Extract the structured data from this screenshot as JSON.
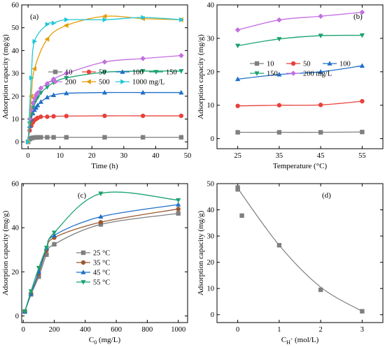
{
  "colors": {
    "grey": "#7f7f7f",
    "red": "#e8413b",
    "blue": "#1f6fc9",
    "green": "#1aa36f",
    "purple": "#c36fe0",
    "orange": "#e69a00",
    "cyan": "#20c7d6",
    "brown": "#9a5a32"
  },
  "chart_data": [
    {
      "id": "a",
      "type": "line",
      "panel_label": "(a)",
      "xlabel": "Time (h)",
      "ylabel": "Adsorption capacity (mg/g)",
      "xlim": [
        -2,
        50
      ],
      "ylim": [
        -3,
        60
      ],
      "xticks": [
        0,
        10,
        20,
        30,
        40,
        50
      ],
      "xtick_labels": [
        "0",
        "10",
        "20",
        "30",
        "40",
        "50"
      ],
      "yticks": [
        0,
        10,
        20,
        30,
        40,
        50,
        60
      ],
      "ytick_labels": [
        "0",
        "10",
        "20",
        "30",
        "40",
        "50",
        "60"
      ],
      "legend": {
        "placement": "top-right",
        "columns": 4
      },
      "series": [
        {
          "name": "10",
          "color": "grey",
          "marker": "square",
          "x": [
            0,
            0.5,
            1,
            1.5,
            2,
            2.5,
            3,
            4,
            6,
            8,
            12,
            24,
            36,
            48
          ],
          "y": [
            0,
            1.2,
            1.6,
            1.8,
            1.9,
            1.95,
            2.0,
            2.0,
            2.0,
            2.0,
            2.0,
            2.0,
            2.0,
            2.0
          ]
        },
        {
          "name": "50",
          "color": "red",
          "marker": "circle",
          "x": [
            0,
            0.5,
            1,
            1.5,
            2,
            2.5,
            3,
            4,
            6,
            8,
            12,
            24,
            36,
            48
          ],
          "y": [
            0,
            5,
            7,
            8.5,
            9.5,
            10,
            10.5,
            11,
            11,
            11.2,
            11.3,
            11.4,
            11.4,
            11.4
          ]
        },
        {
          "name": "100",
          "color": "blue",
          "marker": "triangle-up",
          "x": [
            0,
            0.5,
            1,
            1.5,
            2,
            2.5,
            3,
            4,
            6,
            8,
            12,
            24,
            36,
            48
          ],
          "y": [
            0,
            7,
            10,
            12.5,
            14,
            15,
            16,
            17.5,
            19.5,
            20.5,
            21.3,
            21.6,
            21.6,
            21.6
          ]
        },
        {
          "name": "150",
          "color": "green",
          "marker": "triangle-down",
          "x": [
            0,
            0.5,
            1,
            1.5,
            2,
            2.5,
            3,
            4,
            6,
            8,
            12,
            24,
            36,
            48
          ],
          "y": [
            0,
            8,
            12,
            15,
            17,
            18.5,
            19.5,
            21.5,
            24,
            26,
            28,
            30.5,
            31,
            31
          ]
        },
        {
          "name": "200",
          "color": "purple",
          "marker": "diamond",
          "x": [
            0,
            0.5,
            1,
            1.5,
            2,
            2.5,
            3,
            4,
            6,
            8,
            12,
            24,
            36,
            48
          ],
          "y": [
            0,
            10,
            14,
            17,
            19,
            20.5,
            21.5,
            23.5,
            25.5,
            27.5,
            30,
            35,
            36.5,
            37.8
          ]
        },
        {
          "name": "500",
          "color": "orange",
          "marker": "triangle-left",
          "x": [
            0,
            1,
            2,
            6,
            12,
            24,
            36,
            48
          ],
          "y": [
            0,
            20,
            32,
            45,
            51,
            55,
            54,
            53.5
          ]
        },
        {
          "name": "1000 mg/L",
          "color": "cyan",
          "marker": "triangle-right",
          "x": [
            0,
            1,
            2,
            6,
            8,
            12,
            24,
            36,
            48
          ],
          "y": [
            0,
            28,
            44,
            51.5,
            52,
            53.5,
            53.5,
            54.5,
            53.5
          ]
        }
      ]
    },
    {
      "id": "b",
      "type": "line",
      "panel_label": "(b)",
      "xlabel": "Temperature (°C)",
      "ylabel": "Adsorption capacity (mg/g)",
      "xlim": [
        20,
        60
      ],
      "ylim": [
        -3,
        40
      ],
      "xticks": [
        25,
        35,
        45,
        55
      ],
      "xtick_labels": [
        "25",
        "35",
        "45",
        "55"
      ],
      "yticks": [
        0,
        10,
        20,
        30,
        40
      ],
      "ytick_labels": [
        "0",
        "10",
        "20",
        "30",
        "40"
      ],
      "legend": {
        "placement": "center-right",
        "columns": 3
      },
      "series": [
        {
          "name": "10",
          "color": "grey",
          "marker": "square",
          "x": [
            25,
            35,
            45,
            55
          ],
          "y": [
            1.9,
            1.9,
            1.9,
            2.0
          ]
        },
        {
          "name": "50",
          "color": "red",
          "marker": "circle",
          "x": [
            25,
            35,
            45,
            55
          ],
          "y": [
            9.8,
            10.0,
            10.1,
            11.2
          ]
        },
        {
          "name": "100",
          "color": "blue",
          "marker": "triangle-up",
          "x": [
            25,
            35,
            45,
            55
          ],
          "y": [
            17.8,
            19.2,
            20.0,
            21.8
          ]
        },
        {
          "name": "150",
          "color": "green",
          "marker": "triangle-down",
          "x": [
            25,
            35,
            45,
            55
          ],
          "y": [
            27.8,
            29.8,
            30.8,
            30.9
          ]
        },
        {
          "name": "200 mg/L",
          "color": "purple",
          "marker": "diamond",
          "x": [
            25,
            35,
            45,
            55
          ],
          "y": [
            32.5,
            35.5,
            36.6,
            37.8
          ]
        }
      ]
    },
    {
      "id": "c",
      "type": "line",
      "panel_label": "(c)",
      "xlabel": "C0 (mg/L)",
      "ylabel": "Adsorption capacity (mg/g)",
      "xlim": [
        -10,
        1060
      ],
      "ylim": [
        -3,
        60
      ],
      "xticks": [
        0,
        200,
        400,
        600,
        800,
        1000
      ],
      "xtick_labels": [
        "0",
        "200",
        "400",
        "600",
        "800",
        "1000"
      ],
      "yticks": [
        0,
        20,
        40,
        60
      ],
      "ytick_labels": [
        "0",
        "20",
        "40",
        "60"
      ],
      "legend": {
        "placement": "center",
        "columns": 1
      },
      "series": [
        {
          "name": "25 °C",
          "color": "grey",
          "marker": "square",
          "x": [
            10,
            50,
            100,
            150,
            200,
            500,
            1000
          ],
          "y": [
            2,
            9.8,
            17.8,
            27.8,
            32.5,
            41.5,
            46.5
          ]
        },
        {
          "name": "35 °C",
          "color": "brown",
          "marker": "circle",
          "x": [
            10,
            50,
            100,
            150,
            200,
            500,
            1000
          ],
          "y": [
            2,
            10.0,
            19.2,
            29.8,
            35.5,
            42.5,
            48.5
          ]
        },
        {
          "name": "45 °C",
          "color": "blue",
          "marker": "triangle-up",
          "x": [
            10,
            50,
            100,
            150,
            200,
            500,
            1000
          ],
          "y": [
            2,
            10.1,
            20.0,
            30.8,
            36.6,
            45,
            50.5
          ]
        },
        {
          "name": "55 °C",
          "color": "green",
          "marker": "triangle-down",
          "x": [
            10,
            50,
            100,
            150,
            200,
            500,
            1000
          ],
          "y": [
            2,
            11.2,
            21.8,
            30.9,
            37.8,
            55.5,
            52.5
          ]
        }
      ]
    },
    {
      "id": "d",
      "type": "scatter",
      "panel_label": "(d)",
      "xlabel": "CH+ (mol/L)",
      "ylabel": "Adsorption capacity (mg/g)",
      "xlim": [
        -0.5,
        3.5
      ],
      "ylim": [
        -3,
        50
      ],
      "xticks": [
        0,
        1,
        2,
        3
      ],
      "xtick_labels": [
        "0",
        "1",
        "2",
        "3"
      ],
      "yticks": [
        0,
        10,
        20,
        30,
        40,
        50
      ],
      "ytick_labels": [
        "0",
        "10",
        "20",
        "30",
        "40",
        "50"
      ],
      "series": [
        {
          "name": "",
          "color": "grey",
          "marker": "square",
          "x": [
            0,
            0,
            0.1,
            1,
            2,
            3
          ],
          "y": [
            48.5,
            47.8,
            37.8,
            26.5,
            9.5,
            1.3
          ]
        }
      ]
    }
  ]
}
